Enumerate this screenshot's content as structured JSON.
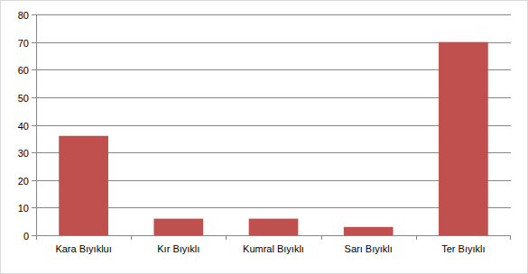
{
  "chart_data": {
    "type": "bar",
    "categories": [
      "Kara Bıyıkluı",
      "Kır Bıyıklı",
      "Kumral Bıyıklı",
      "Sarı Bıyıklı",
      "Ter Bıyıklı"
    ],
    "values": [
      36,
      6,
      6,
      3,
      70
    ],
    "color": "#c0504d",
    "ylim": [
      0,
      80
    ],
    "yticks": [
      0,
      10,
      20,
      30,
      40,
      50,
      60,
      70,
      80
    ],
    "grid": true
  }
}
